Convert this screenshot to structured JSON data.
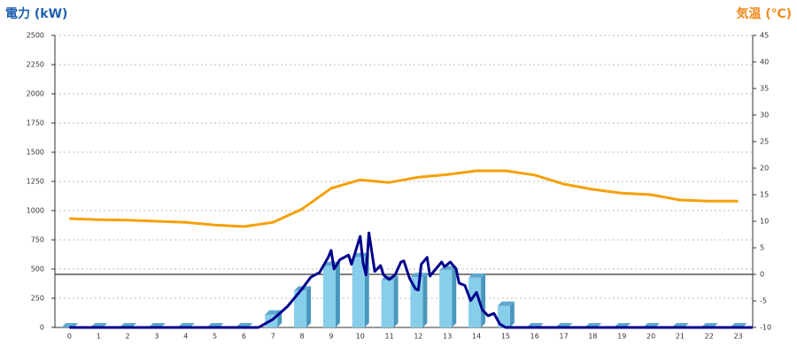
{
  "chart_data": {
    "type": "bar",
    "y_label": "電力 (kW)",
    "y2_label": "気温 (℃)",
    "categories": [
      "0",
      "1",
      "2",
      "3",
      "4",
      "5",
      "6",
      "7",
      "8",
      "9",
      "10",
      "11",
      "12",
      "13",
      "14",
      "15",
      "16",
      "17",
      "18",
      "19",
      "20",
      "21",
      "22",
      "23"
    ],
    "ylim": [
      0,
      2500
    ],
    "yticks": [
      0,
      250,
      500,
      750,
      1000,
      1250,
      1500,
      1750,
      2000,
      2250,
      2500
    ],
    "y2lim": [
      -10,
      45
    ],
    "y2ticks": [
      -10,
      -5,
      0,
      5,
      10,
      15,
      20,
      25,
      30,
      35,
      40,
      45
    ],
    "grid": true,
    "series": [
      {
        "type": "bar",
        "color": "#87ceeb",
        "values": [
          0,
          0,
          0,
          0,
          0,
          0,
          0,
          110,
          315,
          525,
          600,
          405,
          430,
          490,
          425,
          185,
          0,
          0,
          0,
          0,
          0,
          0,
          0,
          0
        ]
      },
      {
        "type": "line",
        "color": "#00008b",
        "x": [
          0,
          6.5,
          7,
          7.5,
          8,
          8.3,
          8.6,
          8.9,
          9.0,
          9.1,
          9.3,
          9.6,
          9.7,
          9.9,
          10.0,
          10.1,
          10.2,
          10.3,
          10.5,
          10.7,
          10.8,
          11.0,
          11.2,
          11.4,
          11.5,
          11.7,
          11.9,
          12.0,
          12.1,
          12.3,
          12.4,
          12.6,
          12.8,
          12.9,
          13.1,
          13.3,
          13.4,
          13.6,
          13.8,
          14.0,
          14.2,
          14.4,
          14.6,
          14.8,
          15.0,
          23.5
        ],
        "values": [
          0,
          0,
          70,
          180,
          330,
          430,
          470,
          600,
          660,
          500,
          580,
          620,
          540,
          700,
          780,
          550,
          450,
          810,
          480,
          530,
          450,
          410,
          450,
          560,
          570,
          420,
          330,
          320,
          540,
          600,
          440,
          500,
          560,
          520,
          560,
          500,
          380,
          360,
          230,
          300,
          150,
          100,
          120,
          30,
          0,
          0
        ]
      },
      {
        "type": "line",
        "axis": "y2",
        "color": "#f5a00a",
        "values": [
          10.5,
          10.3,
          10.2,
          10,
          9.8,
          9.3,
          9.0,
          9.8,
          12.3,
          16.2,
          17.8,
          17.3,
          18.3,
          18.8,
          19.5,
          19.5,
          18.7,
          17,
          16,
          15.3,
          15,
          14,
          13.8,
          13.8
        ]
      }
    ]
  }
}
